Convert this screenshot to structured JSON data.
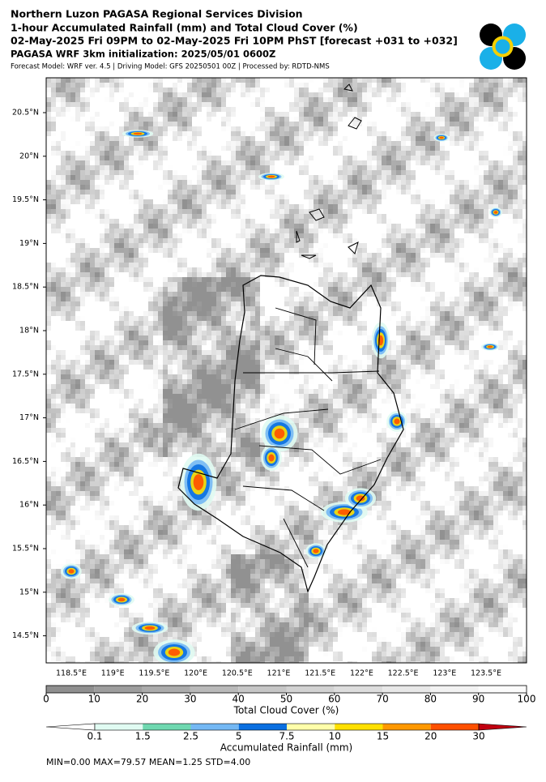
{
  "header": {
    "lines": [
      "Northern Luzon PAGASA Regional Services Division",
      "1-hour Accumulated Rainfall (mm) and Total Cloud Cover (%)",
      "02-May-2025 Fri 09PM to 02-May-2025 Fri 10PM PhST [forecast +031 to +032]"
    ],
    "init": "PAGASA WRF 3km initialization: 2025/05/01 0600Z",
    "model": "Forecast Model: WRF ver. 4.5 | Driving Model: GFS 20250501 00Z | Processed by: RDTD-NMS"
  },
  "map": {
    "lat_ticks": [
      "20.5°N",
      "20°N",
      "19.5°N",
      "19°N",
      "18.5°N",
      "18°N",
      "17.5°N",
      "17°N",
      "16.5°N",
      "16°N",
      "15.5°N",
      "15°N",
      "14.5°N"
    ],
    "lon_ticks": [
      "118.5°E",
      "119°E",
      "119.5°E",
      "120°E",
      "120.5°E",
      "121°E",
      "121.5°E",
      "122°E",
      "122.5°E",
      "123°E",
      "123.5°E"
    ]
  },
  "cloud_bar": {
    "title": "Total Cloud Cover (%)",
    "ticks": [
      "0",
      "10",
      "20",
      "30",
      "40",
      "50",
      "60",
      "70",
      "80",
      "90",
      "100"
    ],
    "colors": [
      "#8f8f8f",
      "#9d9d9d",
      "#ababab",
      "#b9b9b9",
      "#c6c6c6",
      "#d2d2d2",
      "#dddddd",
      "#e8e8e8",
      "#f2f2f2",
      "#fbfbfb"
    ]
  },
  "rain_bar": {
    "title": "Accumulated Rainfall (mm)",
    "ticks": [
      "0.1",
      "1.5",
      "2.5",
      "5",
      "7.5",
      "10",
      "15",
      "20",
      "30"
    ],
    "colors": [
      "#ffffff",
      "#e0fbf2",
      "#6fd8b0",
      "#74b8f4",
      "#0a6fe0",
      "#ffffaa",
      "#ffe000",
      "#ff9800",
      "#ff5000",
      "#c00010"
    ]
  },
  "stats": "MIN=0.00   MAX=79.57   MEAN=1.25   STD=4.00"
}
